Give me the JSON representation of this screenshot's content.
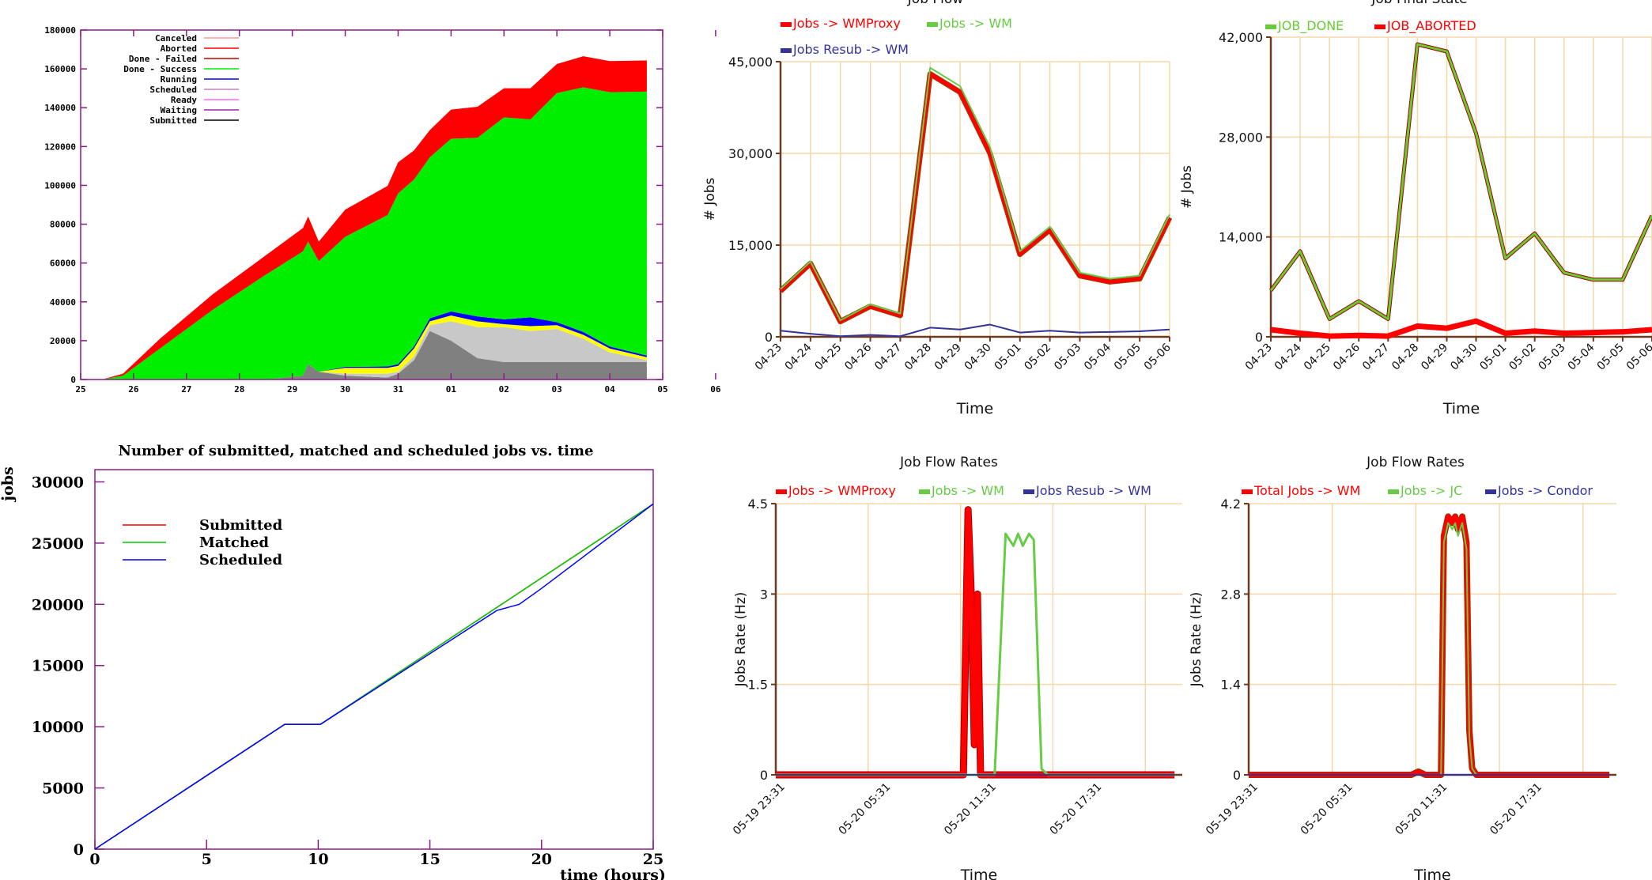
{
  "chart_data": [
    {
      "id": "stacked",
      "type": "area",
      "title": "",
      "xlabel": "",
      "ylabel": "",
      "xlim": [
        25,
        36
      ],
      "ylim": [
        0,
        180000
      ],
      "x_tick_labels": [
        "25",
        "26",
        "27",
        "28",
        "29",
        "30",
        "31",
        "01",
        "02",
        "03",
        "04",
        "05",
        "06"
      ],
      "y_ticks": [
        0,
        20000,
        40000,
        60000,
        80000,
        100000,
        120000,
        140000,
        160000,
        180000
      ],
      "legend_position": "top-left",
      "legend": [
        {
          "name": "Canceled",
          "color": "#ff9999"
        },
        {
          "name": "Aborted",
          "color": "#ff0000"
        },
        {
          "name": "Done - Failed",
          "color": "#cc0000"
        },
        {
          "name": "Done - Success",
          "color": "#00ee00"
        },
        {
          "name": "Running",
          "color": "#0000ff"
        },
        {
          "name": "Scheduled",
          "color": "#c080c0"
        },
        {
          "name": "Ready",
          "color": "#ff66ff"
        },
        {
          "name": "Waiting",
          "color": "#a020a0"
        },
        {
          "name": "Submitted",
          "color": "#000000"
        }
      ],
      "x": [
        25.4,
        25.8,
        26.5,
        27.5,
        28.5,
        29.2,
        29.3,
        29.5,
        30,
        30.8,
        31,
        31.3,
        31.6,
        32,
        32.5,
        33,
        33.5,
        34,
        34.5,
        35,
        35.7
      ],
      "bands": [
        {
          "name": "gray",
          "color": "#808080",
          "values": [
            0,
            0,
            0,
            0,
            0,
            2000,
            8000,
            4000,
            2000,
            1000,
            3000,
            10000,
            25000,
            20000,
            11000,
            9000,
            9000,
            9000,
            9000,
            9000,
            9000
          ]
        },
        {
          "name": "light-gray",
          "color": "#c8c8c8",
          "values": [
            0,
            0,
            0,
            0,
            0,
            0,
            0,
            0,
            1000,
            2000,
            1000,
            2000,
            3000,
            10000,
            16000,
            18000,
            16000,
            17000,
            12000,
            5000,
            1000
          ]
        },
        {
          "name": "yellow",
          "color": "#ffff00",
          "values": [
            0,
            0,
            0,
            0,
            0,
            0,
            0,
            0,
            3000,
            3000,
            3000,
            4000,
            2000,
            3000,
            3000,
            1500,
            2500,
            2000,
            2000,
            2000,
            1500
          ]
        },
        {
          "name": "Running",
          "color": "#0000ff",
          "values": [
            0,
            0,
            0,
            0,
            0,
            0,
            0,
            0,
            500,
            700,
            900,
            1000,
            1500,
            2000,
            2500,
            2500,
            4500,
            1500,
            1500,
            1000,
            800
          ]
        },
        {
          "name": "Done - Success",
          "color": "#00ee00",
          "values": [
            0,
            2000,
            16000,
            36000,
            54000,
            64000,
            63000,
            57000,
            67000,
            78000,
            88000,
            86000,
            83000,
            89000,
            92000,
            104000,
            102000,
            118000,
            126000,
            131000,
            136000
          ]
        },
        {
          "name": "Aborted",
          "color": "#ff0000",
          "values": [
            0,
            1000,
            5000,
            8000,
            10000,
            12000,
            13000,
            10000,
            14000,
            15000,
            16000,
            15000,
            14000,
            15000,
            16000,
            15000,
            16000,
            15000,
            16000,
            16000,
            16000
          ]
        }
      ]
    },
    {
      "id": "jobflow",
      "type": "line",
      "title": "Job Flow",
      "xlabel": "Time",
      "ylabel": "# Jobs",
      "ylim": [
        0,
        45000
      ],
      "y_ticks": [
        0,
        15000,
        30000,
        45000
      ],
      "y_tick_labels": [
        "0",
        "15,000",
        "30,000",
        "45,000"
      ],
      "categories": [
        "04-23",
        "04-24",
        "04-25",
        "04-26",
        "04-27",
        "04-28",
        "04-29",
        "04-30",
        "05-01",
        "05-02",
        "05-03",
        "05-04",
        "05-05",
        "05-06"
      ],
      "series": [
        {
          "name": "Jobs -> WMProxy",
          "color": "#ff0000",
          "values": [
            7500,
            12000,
            2500,
            5000,
            3500,
            43000,
            40000,
            30000,
            13500,
            17500,
            10000,
            9000,
            9500,
            19500
          ]
        },
        {
          "name": "Jobs -> WM",
          "color": "#66cc44",
          "values": [
            7800,
            12300,
            2700,
            5300,
            3800,
            44000,
            41000,
            31000,
            14000,
            18000,
            10500,
            9500,
            10000,
            20000
          ]
        },
        {
          "name": "Jobs Resub -> WM",
          "color": "#333399",
          "values": [
            1000,
            500,
            100,
            300,
            100,
            1500,
            1200,
            2000,
            700,
            1000,
            700,
            800,
            900,
            1200
          ]
        }
      ]
    },
    {
      "id": "finalstate",
      "type": "line",
      "title": "Job Final State",
      "xlabel": "Time",
      "ylabel": "# Jobs",
      "ylim": [
        0,
        42000
      ],
      "y_ticks": [
        0,
        14000,
        28000,
        42000
      ],
      "y_tick_labels": [
        "0",
        "14,000",
        "28,000",
        "42,000"
      ],
      "categories": [
        "04-23",
        "04-24",
        "04-25",
        "04-26",
        "04-27",
        "04-28",
        "04-29",
        "04-30",
        "05-01",
        "05-02",
        "05-03",
        "05-04",
        "05-05",
        "05-06"
      ],
      "series": [
        {
          "name": "JOB_DONE",
          "color": "#66cc33",
          "values": [
            6500,
            12000,
            2500,
            5000,
            2500,
            41000,
            40000,
            28500,
            11000,
            14500,
            9000,
            8000,
            8000,
            17000
          ]
        },
        {
          "name": "JOB_ABORTED",
          "color": "#ff0000",
          "values": [
            1000,
            500,
            100,
            200,
            100,
            1500,
            1200,
            2200,
            500,
            800,
            500,
            600,
            700,
            1000
          ]
        }
      ]
    },
    {
      "id": "cumulative",
      "type": "line",
      "title": "Number of submitted, matched and scheduled jobs vs. time",
      "xlabel": "time (hours)",
      "ylabel": "jobs",
      "xlim": [
        0,
        25
      ],
      "ylim": [
        0,
        31000
      ],
      "x_ticks": [
        0,
        5,
        10,
        15,
        20,
        25
      ],
      "y_ticks": [
        0,
        5000,
        10000,
        15000,
        20000,
        25000,
        30000
      ],
      "legend_position": "top-left",
      "series": [
        {
          "name": "Submitted",
          "color": "#ff0000",
          "x": [
            0,
            8.5,
            10.1,
            25
          ],
          "y": [
            0,
            10200,
            10200,
            28200
          ]
        },
        {
          "name": "Matched",
          "color": "#00cc00",
          "x": [
            0,
            8.5,
            10.1,
            25
          ],
          "y": [
            0,
            10200,
            10200,
            28200
          ]
        },
        {
          "name": "Scheduled",
          "color": "#0000ff",
          "x": [
            0,
            8.5,
            10.1,
            18,
            19,
            20,
            25
          ],
          "y": [
            0,
            10200,
            10200,
            19500,
            20000,
            21300,
            28200
          ]
        }
      ]
    },
    {
      "id": "rates1",
      "type": "line",
      "title": "Job Flow Rates",
      "xlabel": "Time",
      "ylabel": "Jobs Rate (Hz)",
      "ylim": [
        0,
        4.5
      ],
      "y_ticks": [
        0,
        1.5,
        3,
        4.5
      ],
      "y_tick_labels": [
        "0",
        "1.5",
        "3",
        "4.5"
      ],
      "x_tick_labels": [
        "05-19 23:31",
        "05-20 05:31",
        "05-20 11:31",
        "05-20 17:31"
      ],
      "xlim": [
        0,
        26
      ],
      "series": [
        {
          "name": "Jobs -> WMProxy",
          "color": "#ff0000",
          "x": [
            0,
            12.0,
            12.3,
            12.5,
            12.7,
            12.9,
            13.1,
            13.3,
            13.5,
            25.5
          ],
          "y": [
            0,
            0,
            4.4,
            3.0,
            0.5,
            3.0,
            0,
            0,
            0,
            0
          ]
        },
        {
          "name": "Jobs -> WM",
          "color": "#66cc44",
          "x": [
            0,
            14.0,
            14.7,
            15.2,
            15.5,
            15.8,
            16.2,
            16.5,
            17.0,
            17.4,
            25.5
          ],
          "y": [
            0,
            0,
            4.0,
            3.8,
            4.0,
            3.8,
            4.0,
            3.9,
            0.1,
            0,
            0
          ]
        },
        {
          "name": "Jobs Resub -> WM",
          "color": "#333399",
          "x": [
            0,
            25.5
          ],
          "y": [
            0,
            0
          ]
        }
      ]
    },
    {
      "id": "rates2",
      "type": "line",
      "title": "Job Flow Rates",
      "xlabel": "Time",
      "ylabel": "Jobs Rate (Hz)",
      "ylim": [
        0,
        4.2
      ],
      "y_ticks": [
        0,
        1.4,
        2.8,
        4.2
      ],
      "y_tick_labels": [
        "0",
        "1.4",
        "2.8",
        "4.2"
      ],
      "x_tick_labels": [
        "05-19 23:31",
        "05-20 05:31",
        "05-20 11:31",
        "05-20 17:31"
      ],
      "xlim": [
        0,
        26
      ],
      "series": [
        {
          "name": "Total Jobs -> WM",
          "color": "#ff0000",
          "x": [
            0,
            11.5,
            12,
            12.5,
            13.6,
            13.8,
            14.1,
            14.4,
            14.6,
            14.8,
            15.1,
            15.4,
            15.6,
            15.8,
            16.1,
            25.5
          ],
          "y": [
            0,
            0,
            0.05,
            0,
            0,
            3.7,
            4.0,
            3.9,
            4.0,
            3.8,
            4.0,
            3.6,
            0.7,
            0.1,
            0,
            0
          ]
        },
        {
          "name": "Jobs -> JC",
          "color": "#66cc44",
          "x": [
            0,
            13.6,
            13.8,
            14.1,
            14.4,
            14.6,
            14.8,
            15.1,
            15.4,
            15.6,
            15.8,
            16.1,
            25.5
          ],
          "y": [
            0,
            0,
            3.6,
            3.9,
            3.8,
            3.9,
            3.7,
            3.9,
            3.5,
            0.6,
            0.1,
            0,
            0
          ]
        },
        {
          "name": "Jobs -> Condor",
          "color": "#333399",
          "x": [
            0,
            25.5
          ],
          "y": [
            0,
            0
          ]
        }
      ]
    }
  ]
}
